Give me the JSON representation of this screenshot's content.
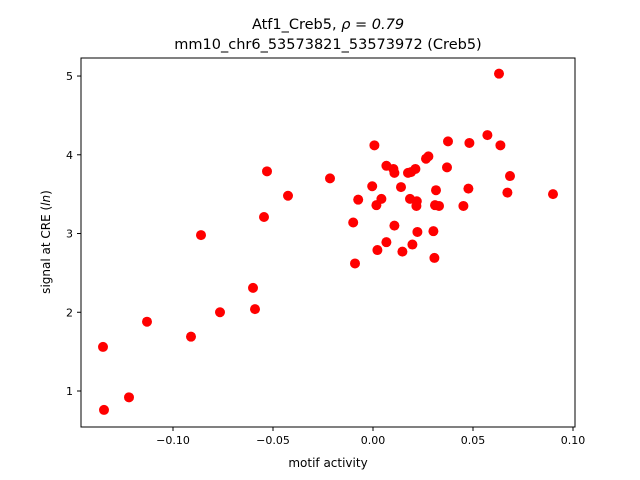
{
  "chart_data": {
    "type": "scatter",
    "title_line1": "Atf1_Creb5, ",
    "title_rho": "ρ = 0.79",
    "title_line2": "mm10_chr6_53573821_53573972 (Creb5)",
    "xlabel": "motif activity",
    "ylabel_prefix": "signal at CRE (",
    "ylabel_italic": "ln",
    "ylabel_suffix": ")",
    "xlim": [
      -0.146,
      0.101
    ],
    "ylim": [
      0.543,
      5.229
    ],
    "xticks": [
      -0.1,
      -0.05,
      0.0,
      0.05,
      0.1
    ],
    "xtick_labels": [
      "−0.10",
      "−0.05",
      "0.00",
      "0.05",
      "0.10"
    ],
    "yticks": [
      1,
      2,
      3,
      4,
      5
    ],
    "ytick_labels": [
      "1",
      "2",
      "3",
      "4",
      "5"
    ],
    "grid": false,
    "marker_color": "#ff0000",
    "points": [
      [
        0.0007,
        4.12
      ],
      [
        0.0067,
        3.86
      ],
      [
        0.0102,
        3.82
      ],
      [
        0.0107,
        3.77
      ],
      [
        0.0175,
        3.77
      ],
      [
        0.019,
        3.78
      ],
      [
        0.0212,
        3.82
      ],
      [
        0.0265,
        3.95
      ],
      [
        0.0277,
        3.98
      ],
      [
        0.0375,
        4.17
      ],
      [
        0.0482,
        4.15
      ],
      [
        0.0572,
        4.25
      ],
      [
        0.0637,
        4.12
      ],
      [
        0.037,
        3.84
      ],
      [
        0.0685,
        3.73
      ],
      [
        -0.0004,
        3.6
      ],
      [
        0.014,
        3.59
      ],
      [
        0.0315,
        3.55
      ],
      [
        0.0477,
        3.57
      ],
      [
        0.0672,
        3.52
      ],
      [
        -0.0074,
        3.43
      ],
      [
        0.0042,
        3.44
      ],
      [
        0.0017,
        3.36
      ],
      [
        0.0185,
        3.44
      ],
      [
        0.0219,
        3.41
      ],
      [
        0.0217,
        3.35
      ],
      [
        0.031,
        3.36
      ],
      [
        0.033,
        3.35
      ],
      [
        0.0452,
        3.35
      ],
      [
        -0.0099,
        3.14
      ],
      [
        0.0107,
        3.1
      ],
      [
        0.0222,
        3.02
      ],
      [
        0.0302,
        3.03
      ],
      [
        0.0067,
        2.89
      ],
      [
        0.0022,
        2.79
      ],
      [
        0.0197,
        2.86
      ],
      [
        0.0147,
        2.77
      ],
      [
        0.0307,
        2.69
      ],
      [
        -0.009,
        2.62
      ],
      [
        0.063,
        5.03
      ],
      [
        0.09,
        3.5
      ],
      [
        -0.0425,
        3.48
      ],
      [
        -0.0215,
        3.7
      ],
      [
        -0.053,
        3.79
      ],
      [
        -0.0545,
        3.21
      ],
      [
        -0.086,
        2.98
      ],
      [
        -0.06,
        2.31
      ],
      [
        -0.059,
        2.04
      ],
      [
        -0.0765,
        2.0
      ],
      [
        -0.091,
        1.69
      ],
      [
        -0.113,
        1.88
      ],
      [
        -0.135,
        1.56
      ],
      [
        -0.122,
        0.92
      ],
      [
        -0.1345,
        0.76
      ]
    ]
  }
}
